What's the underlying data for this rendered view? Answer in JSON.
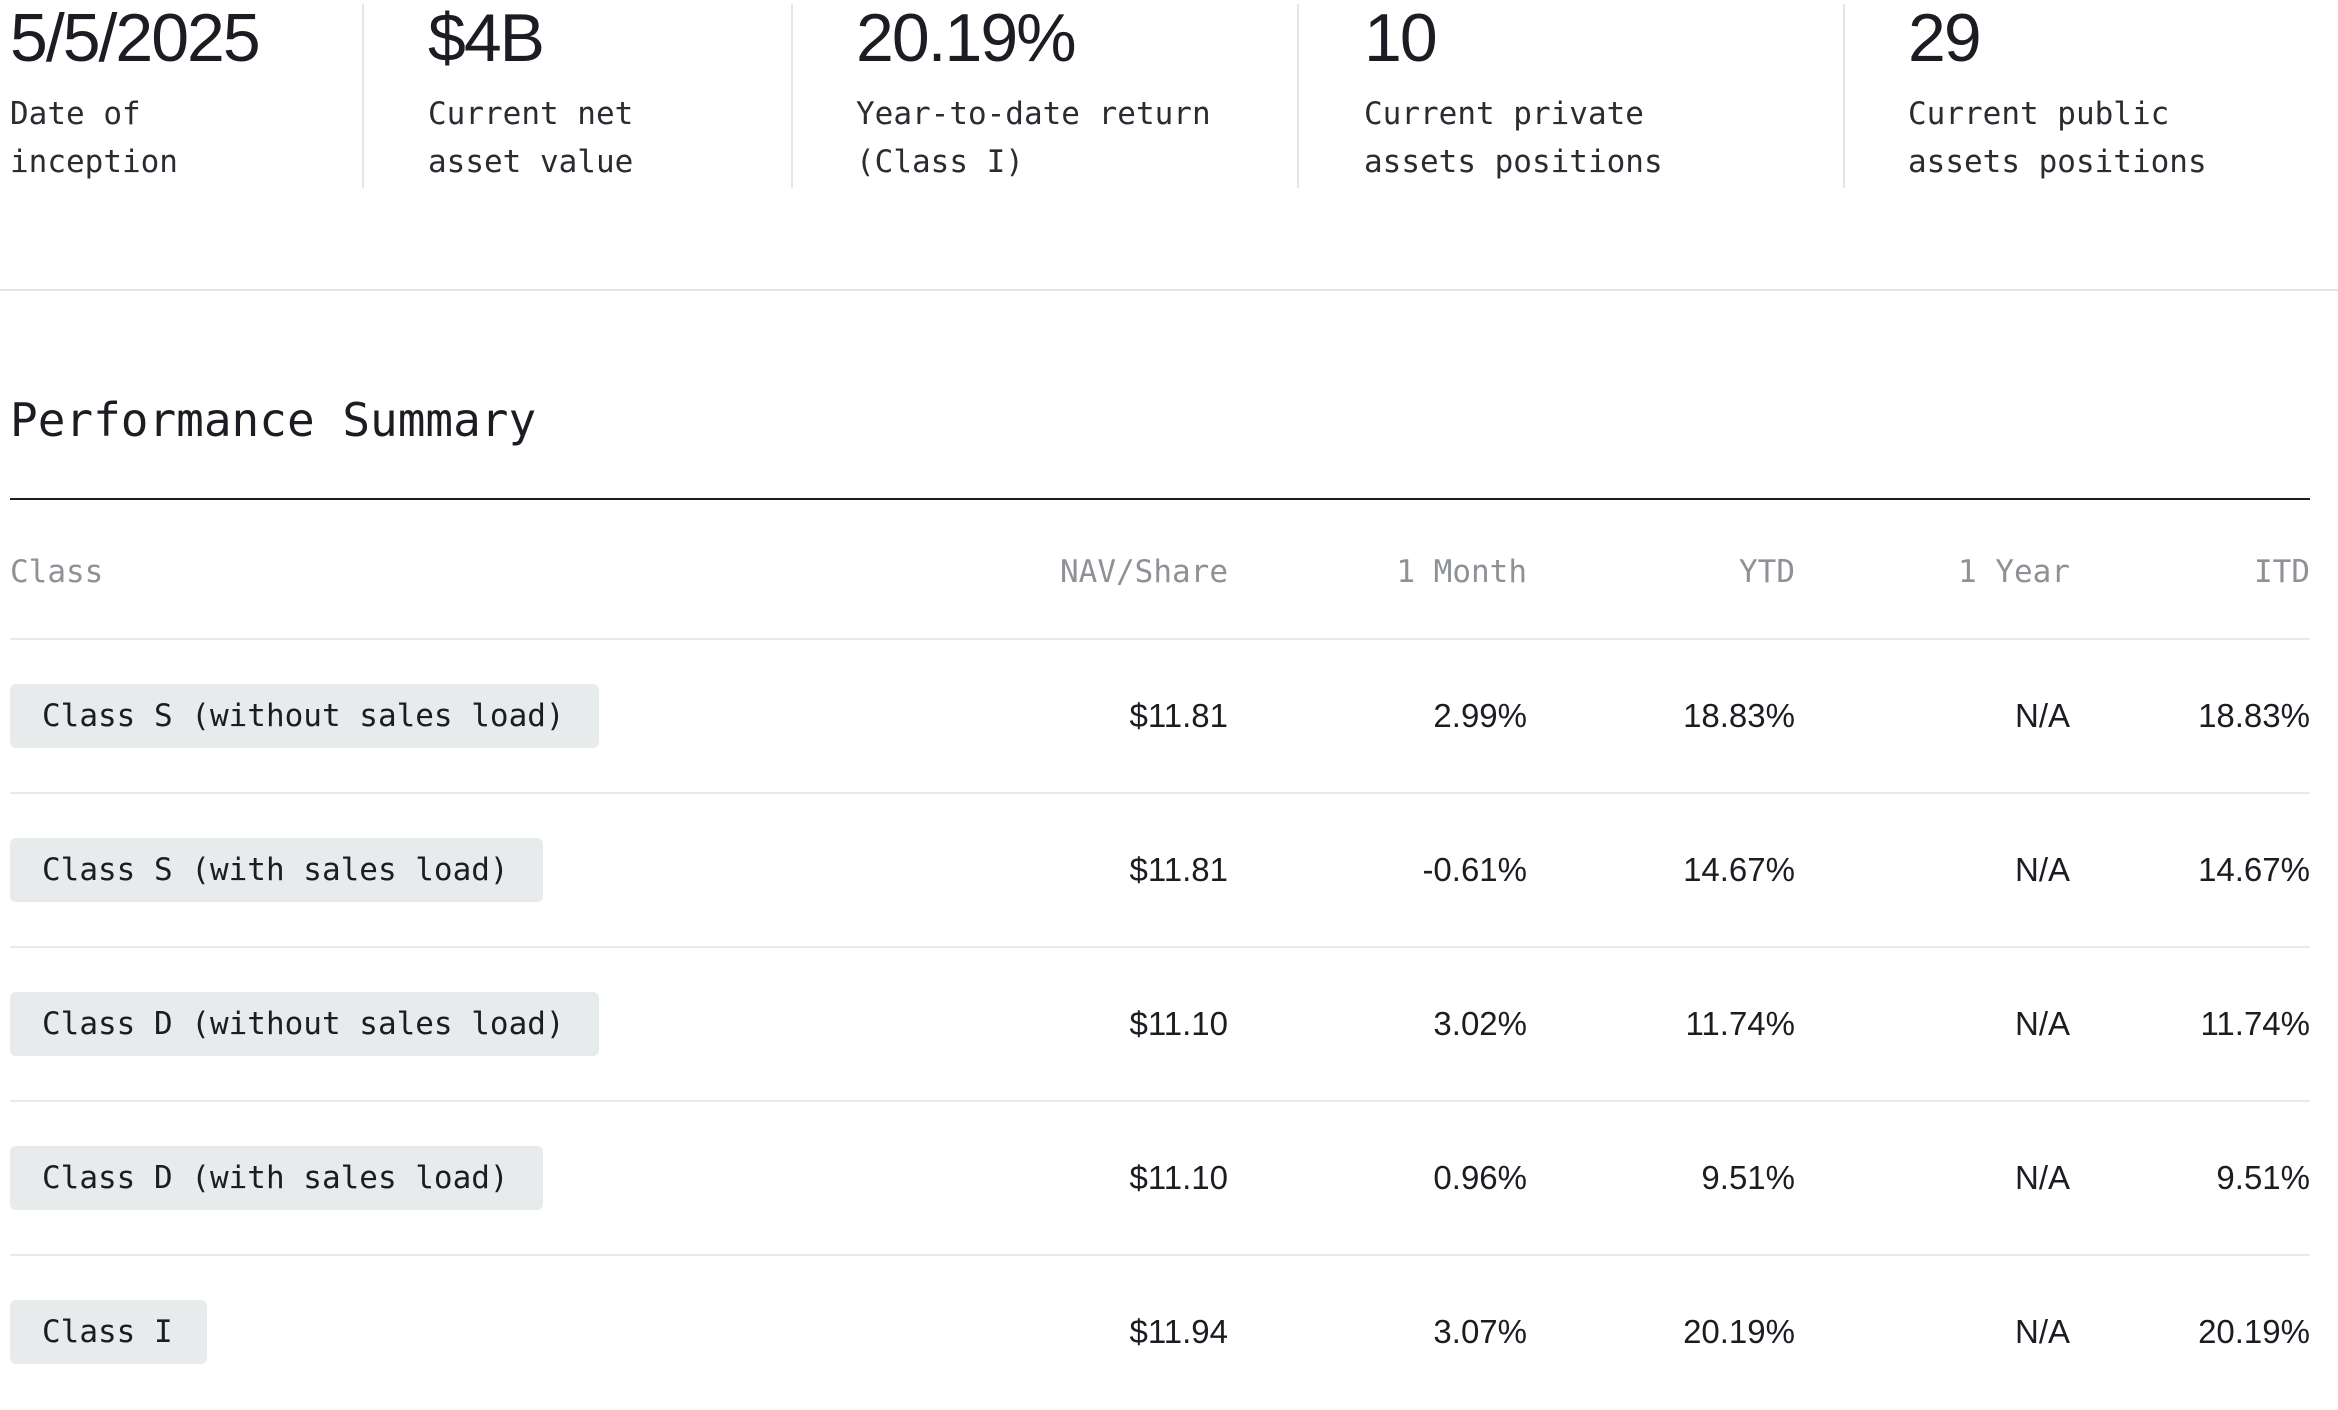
{
  "stats": [
    {
      "value": "5/5/2025",
      "label": "Date of\ninception"
    },
    {
      "value": "$4B",
      "label": "Current net\nasset value"
    },
    {
      "value": "20.19%",
      "label": "Year-to-date return\n(Class I)"
    },
    {
      "value": "10",
      "label": "Current private\nassets positions"
    },
    {
      "value": "29",
      "label": "Current public\nassets positions"
    }
  ],
  "performance": {
    "title": "Performance Summary",
    "columns": {
      "class": "Class",
      "nav": "NAV/Share",
      "month": "1 Month",
      "ytd": "YTD",
      "year": "1 Year",
      "itd": "ITD"
    },
    "rows": [
      {
        "class": "Class S (without sales load)",
        "nav": "$11.81",
        "month": "2.99%",
        "ytd": "18.83%",
        "year": "N/A",
        "itd": "18.83%"
      },
      {
        "class": "Class S (with sales load)",
        "nav": "$11.81",
        "month": "-0.61%",
        "ytd": "14.67%",
        "year": "N/A",
        "itd": "14.67%"
      },
      {
        "class": "Class D (without sales load)",
        "nav": "$11.10",
        "month": "3.02%",
        "ytd": "11.74%",
        "year": "N/A",
        "itd": "11.74%"
      },
      {
        "class": "Class D (with sales load)",
        "nav": "$11.10",
        "month": "0.96%",
        "ytd": "9.51%",
        "year": "N/A",
        "itd": "9.51%"
      },
      {
        "class": "Class I",
        "nav": "$11.94",
        "month": "3.07%",
        "ytd": "20.19%",
        "year": "N/A",
        "itd": "20.19%"
      }
    ]
  }
}
